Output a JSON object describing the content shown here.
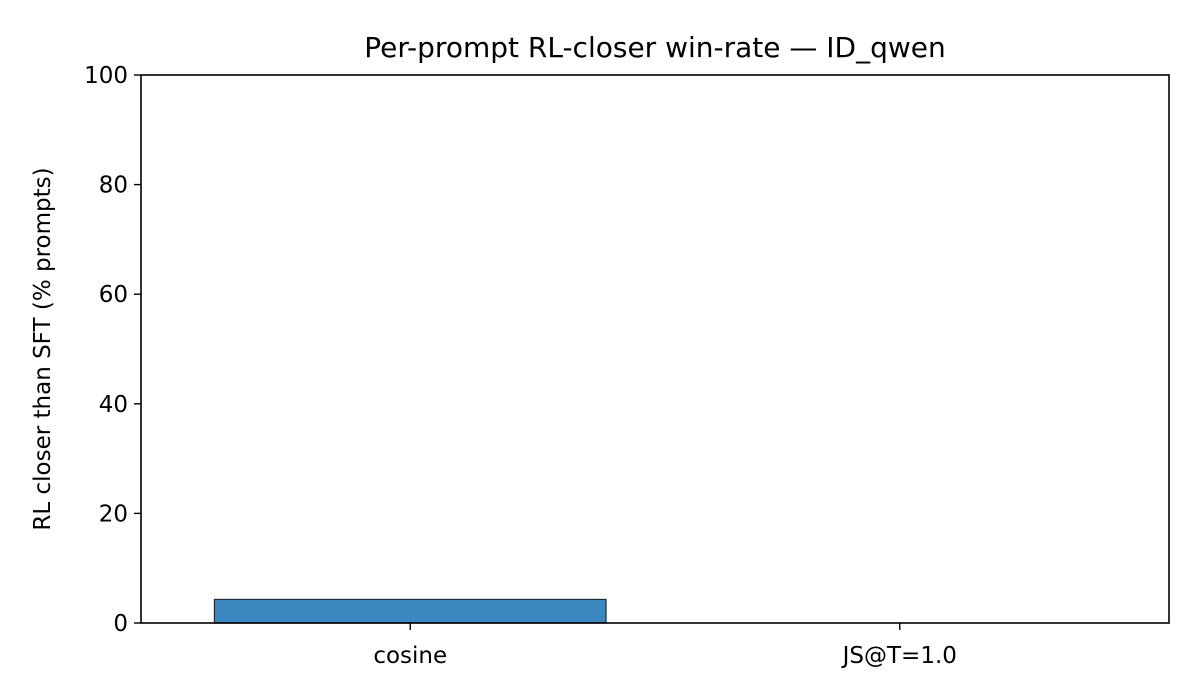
{
  "chart_data": {
    "type": "bar",
    "title": "Per-prompt RL-closer win-rate — ID_qwen",
    "xlabel": "",
    "ylabel": "RL closer than SFT (% prompts)",
    "categories": [
      "cosine",
      "JS@T=1.0"
    ],
    "values": [
      4.3,
      0
    ],
    "ylim": [
      0,
      100
    ],
    "yticks": [
      0,
      20,
      40,
      60,
      80,
      100
    ],
    "bar_color": "#3d87c0",
    "bar_edge_color": "#1a2b3c",
    "grid": false,
    "legend": "none"
  }
}
